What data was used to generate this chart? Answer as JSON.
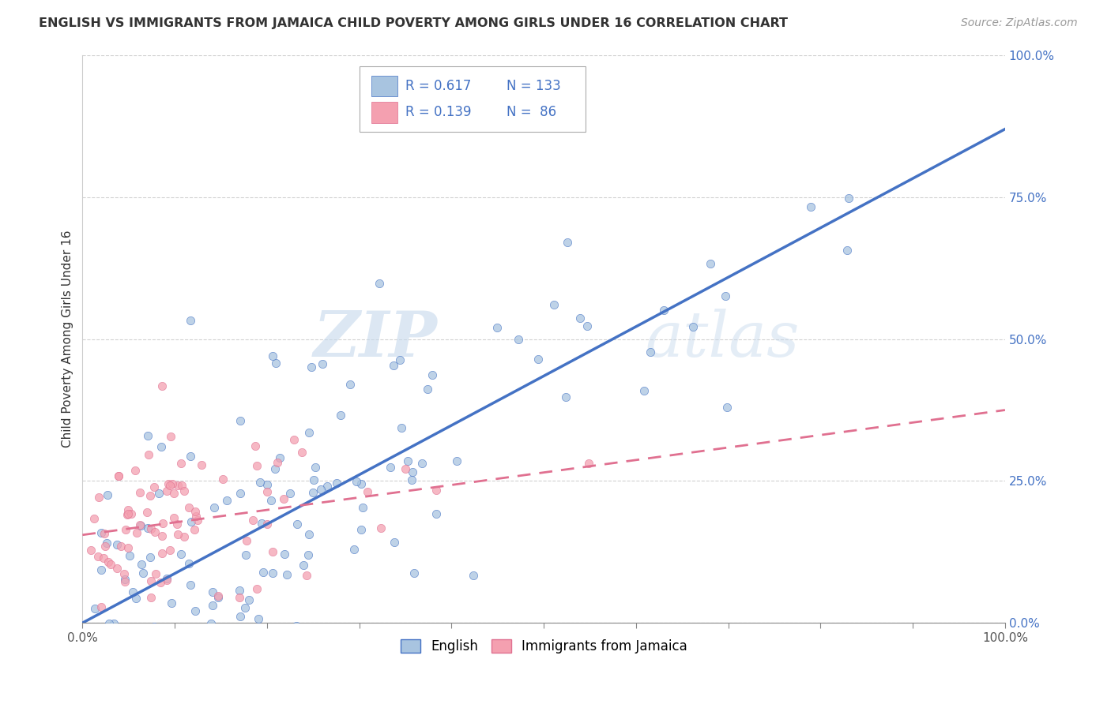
{
  "title": "ENGLISH VS IMMIGRANTS FROM JAMAICA CHILD POVERTY AMONG GIRLS UNDER 16 CORRELATION CHART",
  "source": "Source: ZipAtlas.com",
  "ylabel": "Child Poverty Among Girls Under 16",
  "r_english": 0.617,
  "n_english": 133,
  "r_jamaica": 0.139,
  "n_jamaica": 86,
  "xmin": 0.0,
  "xmax": 1.0,
  "ymin": 0.0,
  "ymax": 1.0,
  "yticks": [
    0.0,
    0.25,
    0.5,
    0.75,
    1.0
  ],
  "ytick_labels": [
    "0.0%",
    "25.0%",
    "50.0%",
    "75.0%",
    "100.0%"
  ],
  "xtick_labels_show": [
    "0.0%",
    "100.0%"
  ],
  "xtick_positions_show": [
    0.0,
    1.0
  ],
  "xtick_minor": [
    0.0,
    0.1,
    0.2,
    0.3,
    0.4,
    0.5,
    0.6,
    0.7,
    0.8,
    0.9,
    1.0
  ],
  "color_english": "#a8c4e0",
  "color_jamaica": "#f4a0b0",
  "color_english_line": "#4472c4",
  "color_jamaica_line": "#e07090",
  "color_r_value": "#4472c4",
  "color_ytick": "#4472c4",
  "watermark_zip": "ZIP",
  "watermark_atlas": "atlas",
  "legend_label_english": "English",
  "legend_label_jamaica": "Immigrants from Jamaica",
  "eng_line_x0": 0.0,
  "eng_line_y0": 0.0,
  "eng_line_x1": 1.0,
  "eng_line_y1": 0.87,
  "jam_line_x0": 0.0,
  "jam_line_y0": 0.155,
  "jam_line_x1": 1.0,
  "jam_line_y1": 0.375
}
